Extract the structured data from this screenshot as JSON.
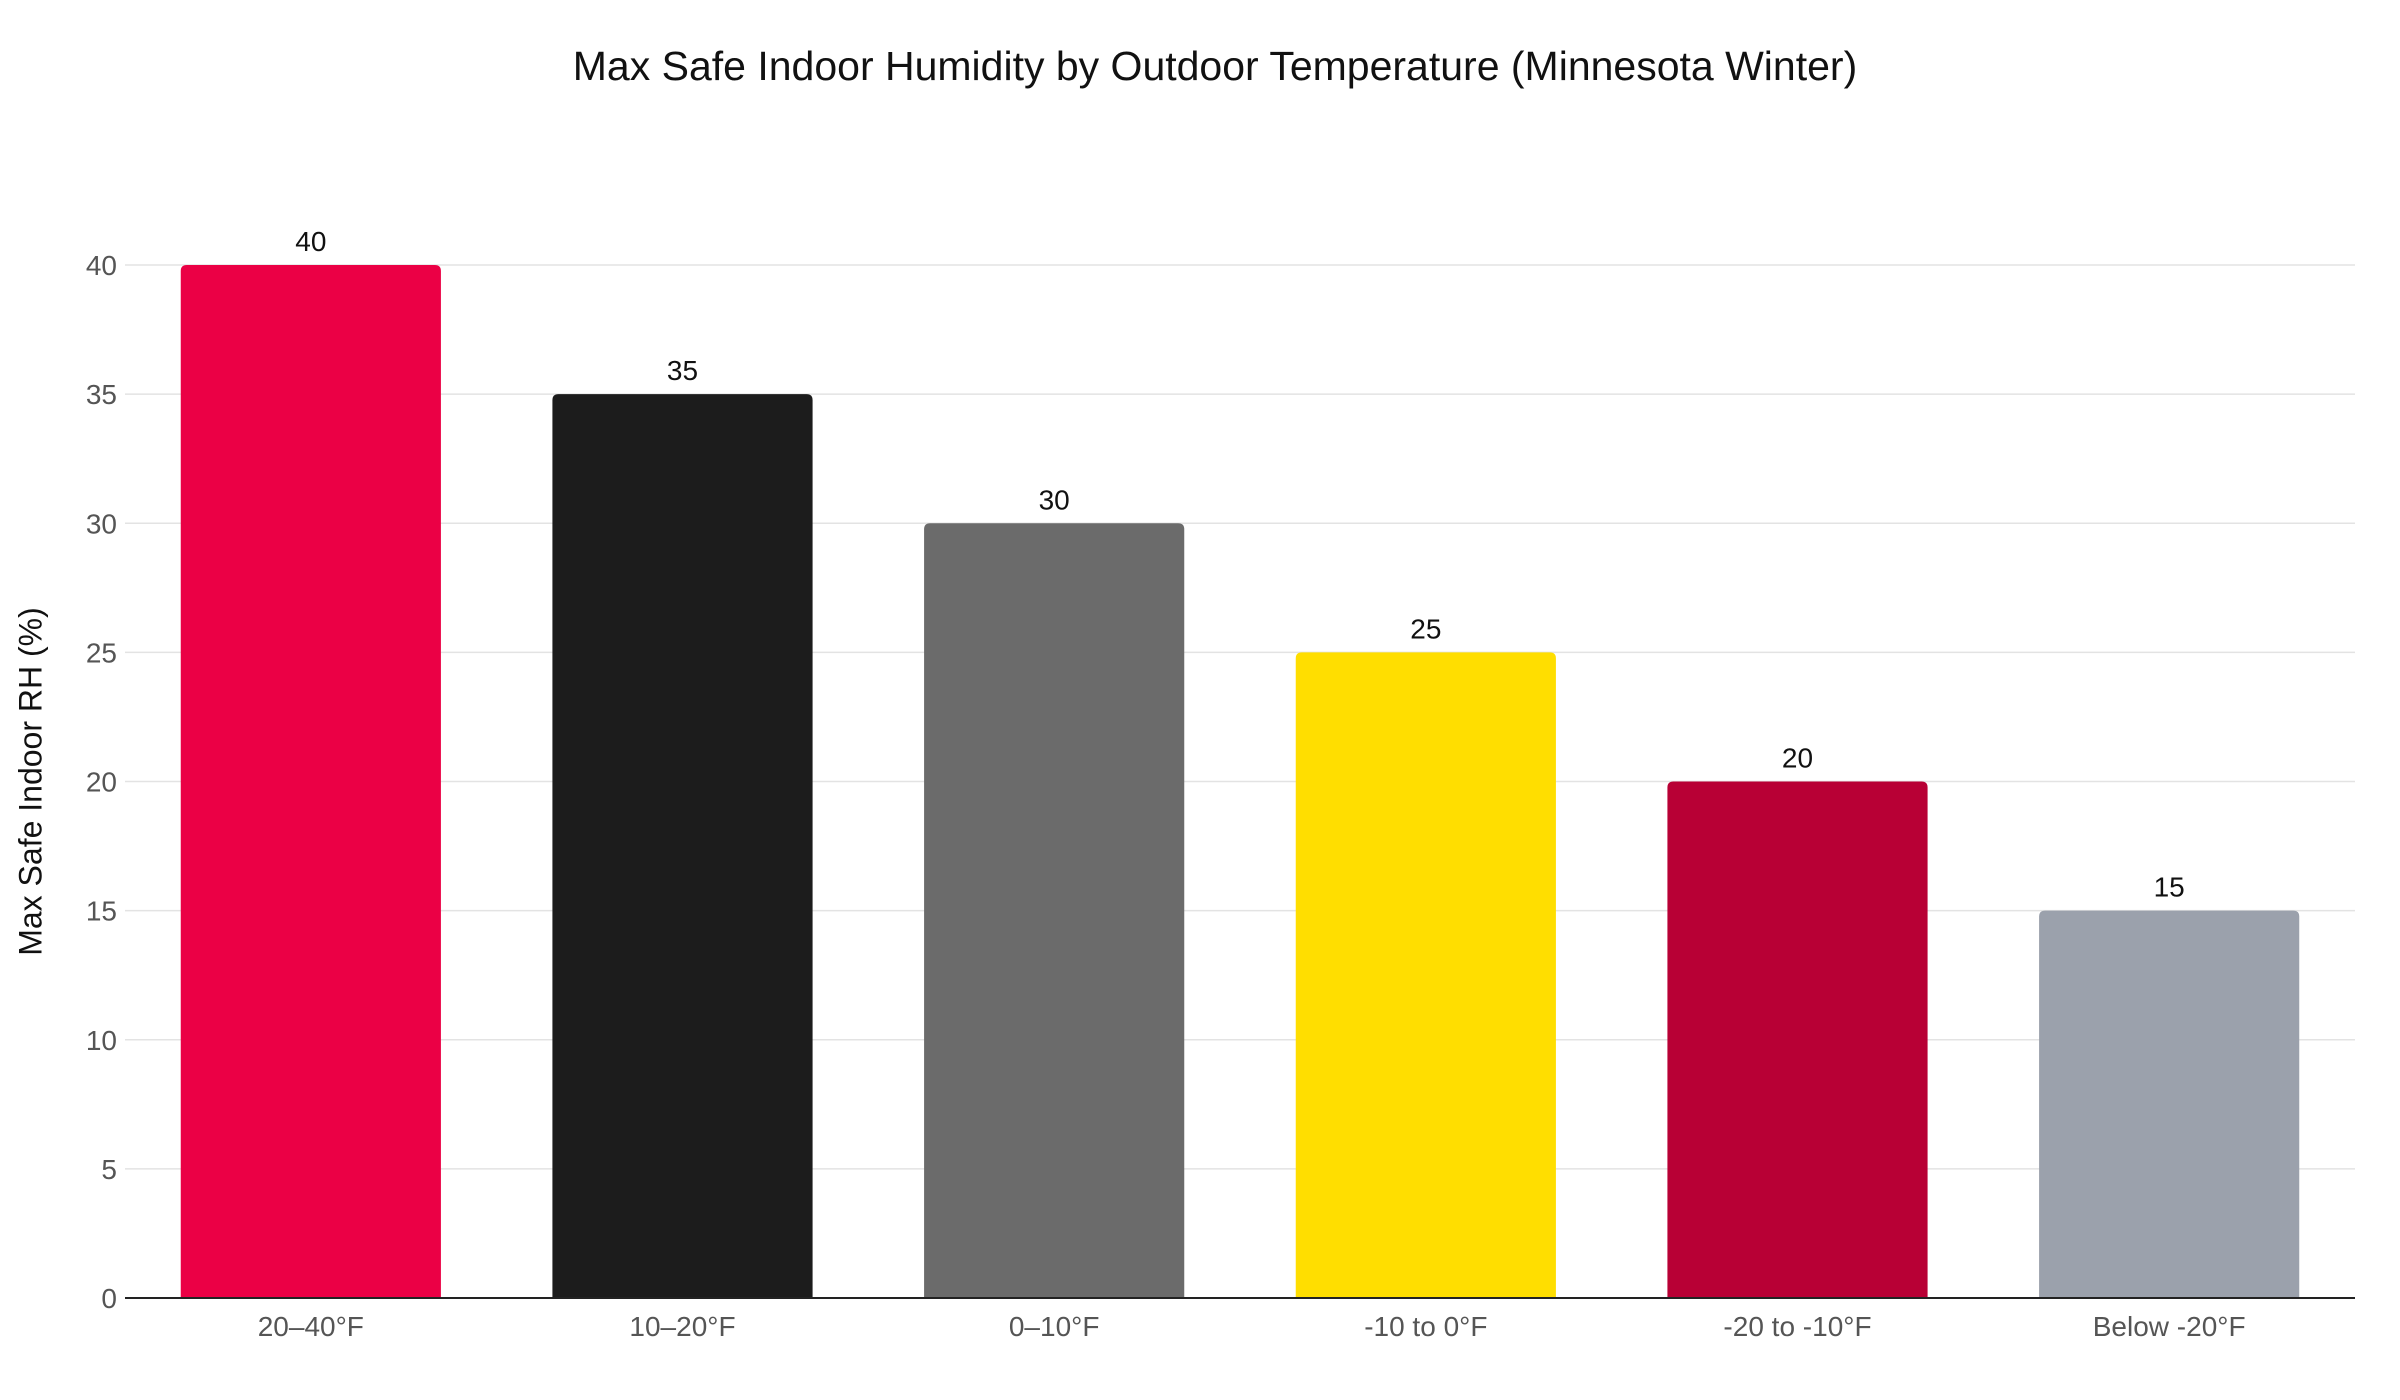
{
  "chart_data": {
    "type": "bar",
    "title": "Max Safe Indoor Humidity by Outdoor Temperature (Minnesota Winter)",
    "xlabel": "",
    "ylabel": "Max Safe Indoor RH (%)",
    "categories": [
      "20–40°F",
      "10–20°F",
      "0–10°F",
      "-10 to 0°F",
      "-20 to -10°F",
      "Below -20°F"
    ],
    "values": [
      40,
      35,
      30,
      25,
      20,
      15
    ],
    "colors": [
      "#eb0045",
      "#1c1c1c",
      "#6b6b6b",
      "#ffde00",
      "#b80035",
      "#9ba1ac"
    ],
    "ylim": [
      0,
      40
    ],
    "yticks": [
      0,
      5,
      10,
      15,
      20,
      25,
      30,
      35,
      40
    ],
    "grid": true,
    "legend": "none",
    "data_labels": true
  }
}
